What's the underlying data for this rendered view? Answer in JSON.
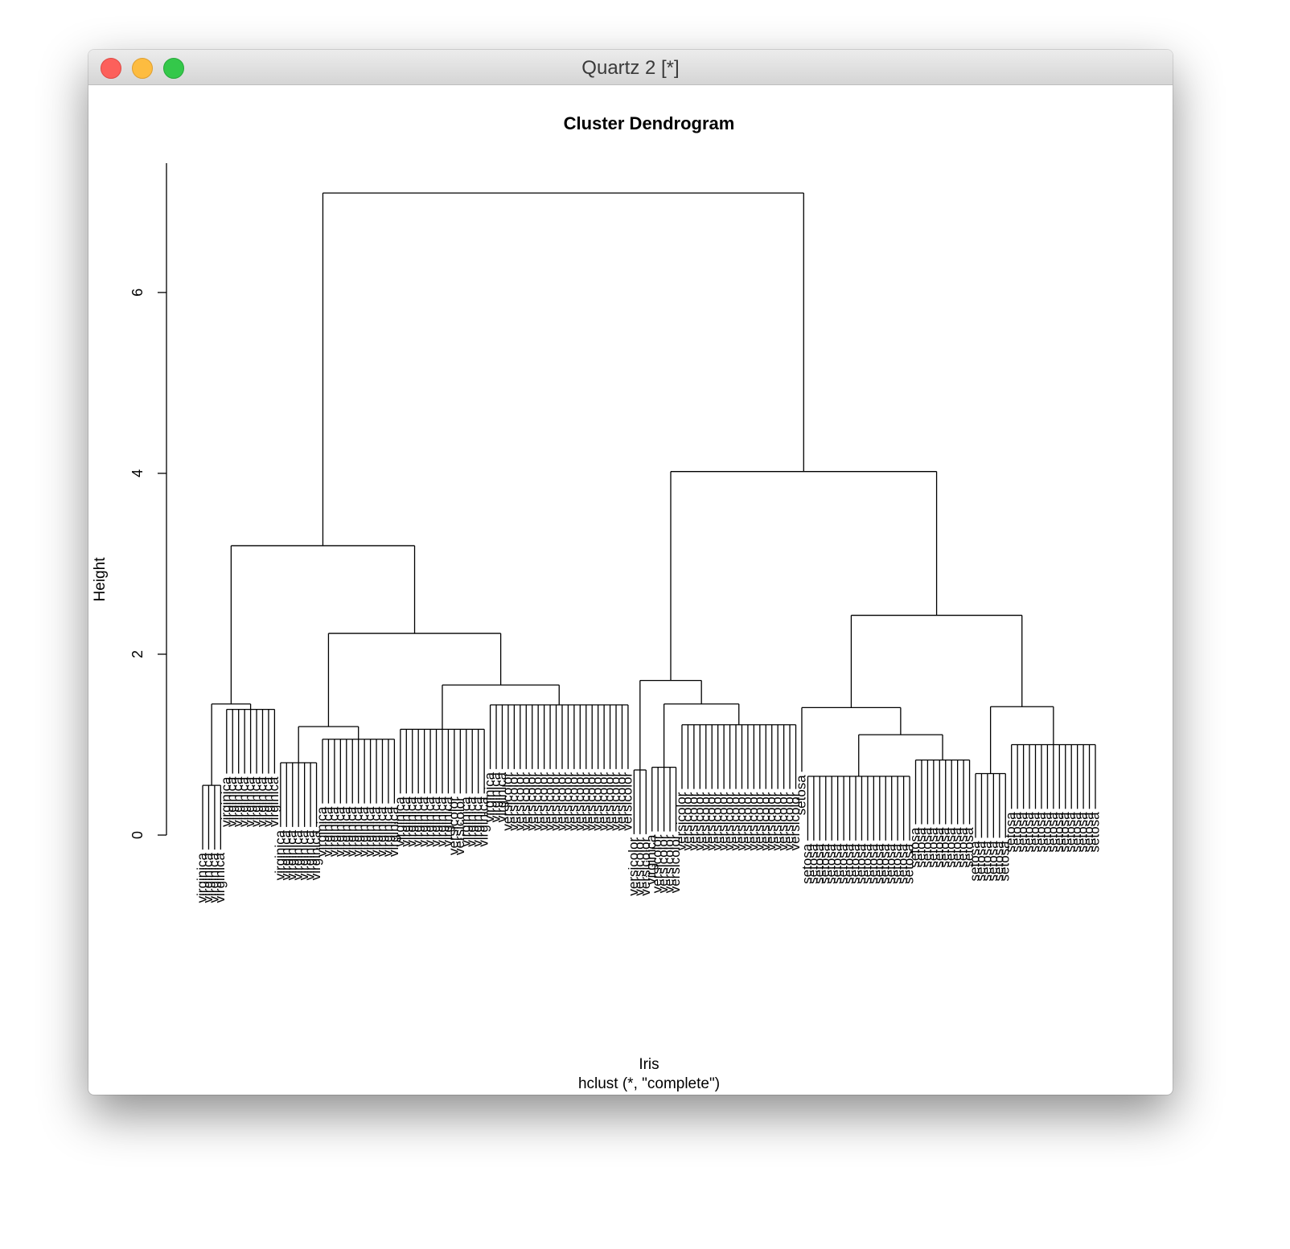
{
  "window": {
    "title": "Quartz 2 [*]"
  },
  "chart_data": {
    "type": "dendrogram",
    "title": "Cluster Dendrogram",
    "y_label": "Height",
    "x_label": "Iris",
    "subtitle": "hclust (*, \"complete\")",
    "ylim": [
      0,
      7.43
    ],
    "yticks": [
      0,
      2,
      4,
      6
    ],
    "color": "#000000",
    "tree": {
      "height": 7.1,
      "children": [
        {
          "height": 3.2,
          "children": [
            {
              "height": 1.45,
              "children": [
                {
                  "height": 0.55,
                  "leaves": [
                    "virginica",
                    "virginica",
                    "virginica",
                    "virginica"
                  ]
                },
                {
                  "height": 1.39,
                  "leaves": [
                    "virginica",
                    "virginica",
                    "virginica",
                    "virginica",
                    "virginica",
                    "virginica",
                    "virginica",
                    "virginica",
                    "virginica"
                  ]
                }
              ]
            },
            {
              "height": 2.23,
              "children": [
                {
                  "height": 1.2,
                  "children": [
                    {
                      "height": 0.8,
                      "leaves": [
                        "virginica",
                        "virginica",
                        "virginica",
                        "virginica",
                        "virginica",
                        "virginica",
                        "virginica"
                      ]
                    },
                    {
                      "height": 1.06,
                      "leaves": [
                        "virginica",
                        "virginica",
                        "virginica",
                        "virginica",
                        "virginica",
                        "virginica",
                        "virginica",
                        "virginica",
                        "virginica",
                        "virginica",
                        "virginica",
                        "virginica",
                        "virginica"
                      ]
                    }
                  ]
                },
                {
                  "height": 1.66,
                  "children": [
                    {
                      "height": 1.17,
                      "leaves": [
                        "virginica",
                        "virginica",
                        "virginica",
                        "virginica",
                        "virginica",
                        "virginica",
                        "virginica",
                        "virginica",
                        "virginica",
                        "versicolor",
                        "versicolor",
                        "virginica",
                        "virginica",
                        "virginica",
                        "virginica"
                      ]
                    },
                    {
                      "height": 1.44,
                      "leaves": [
                        "virginica",
                        "virginica",
                        "virginica",
                        "versicolor",
                        "versicolor",
                        "versicolor",
                        "versicolor",
                        "versicolor",
                        "versicolor",
                        "versicolor",
                        "versicolor",
                        "versicolor",
                        "versicolor",
                        "versicolor",
                        "versicolor",
                        "versicolor",
                        "versicolor",
                        "versicolor",
                        "versicolor",
                        "versicolor",
                        "versicolor",
                        "versicolor",
                        "versicolor",
                        "versicolor"
                      ]
                    }
                  ]
                }
              ]
            }
          ]
        },
        {
          "height": 4.02,
          "children": [
            {
              "height": 1.71,
              "children": [
                {
                  "height": 0.72,
                  "leaves": [
                    "versicolor",
                    "versicolor",
                    "versicolor"
                  ]
                },
                {
                  "height": 1.45,
                  "children": [
                    {
                      "height": 0.75,
                      "leaves": [
                        "virginica",
                        "versicolor",
                        "versicolor",
                        "versicolor",
                        "versicolor"
                      ]
                    },
                    {
                      "height": 1.22,
                      "leaves": [
                        "versicolor",
                        "versicolor",
                        "versicolor",
                        "versicolor",
                        "versicolor",
                        "versicolor",
                        "versicolor",
                        "versicolor",
                        "versicolor",
                        "versicolor",
                        "versicolor",
                        "versicolor",
                        "versicolor",
                        "versicolor",
                        "versicolor",
                        "versicolor",
                        "versicolor",
                        "versicolor",
                        "versicolor",
                        "versicolor"
                      ]
                    }
                  ]
                }
              ]
            },
            {
              "height": 2.43,
              "children": [
                {
                  "height": 1.41,
                  "children": [
                    {
                      "leaf": "setosa"
                    },
                    {
                      "height": 1.11,
                      "children": [
                        {
                          "height": 0.65,
                          "leaves": [
                            "setosa",
                            "setosa",
                            "setosa",
                            "setosa",
                            "setosa",
                            "setosa",
                            "setosa",
                            "setosa",
                            "setosa",
                            "setosa",
                            "setosa",
                            "setosa",
                            "setosa",
                            "setosa",
                            "setosa",
                            "setosa",
                            "setosa",
                            "setosa"
                          ]
                        },
                        {
                          "height": 0.83,
                          "leaves": [
                            "setosa",
                            "setosa",
                            "setosa",
                            "setosa",
                            "setosa",
                            "setosa",
                            "setosa",
                            "setosa",
                            "setosa",
                            "setosa"
                          ]
                        }
                      ]
                    }
                  ]
                },
                {
                  "height": 1.42,
                  "children": [
                    {
                      "height": 0.68,
                      "leaves": [
                        "setosa",
                        "setosa",
                        "setosa",
                        "setosa",
                        "setosa",
                        "setosa"
                      ]
                    },
                    {
                      "height": 1.0,
                      "leaves": [
                        "setosa",
                        "setosa",
                        "setosa",
                        "setosa",
                        "setosa",
                        "setosa",
                        "setosa",
                        "setosa",
                        "setosa",
                        "setosa",
                        "setosa",
                        "setosa",
                        "setosa",
                        "setosa",
                        "setosa"
                      ]
                    }
                  ]
                }
              ]
            }
          ]
        }
      ]
    }
  }
}
